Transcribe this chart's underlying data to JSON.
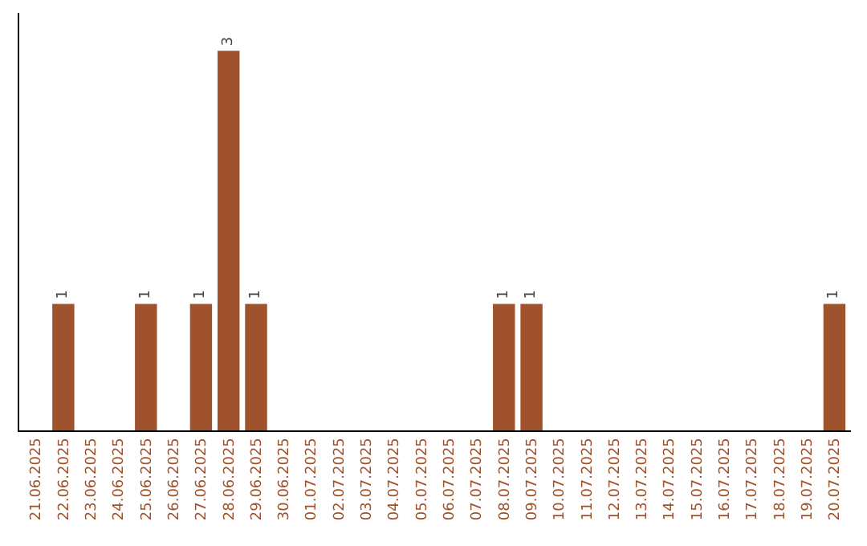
{
  "chart_data": {
    "type": "bar",
    "categories": [
      "21.06.2025",
      "22.06.2025",
      "23.06.2025",
      "24.06.2025",
      "25.06.2025",
      "26.06.2025",
      "27.06.2025",
      "28.06.2025",
      "29.06.2025",
      "30.06.2025",
      "01.07.2025",
      "02.07.2025",
      "03.07.2025",
      "04.07.2025",
      "05.07.2025",
      "06.07.2025",
      "07.07.2025",
      "08.07.2025",
      "09.07.2025",
      "10.07.2025",
      "11.07.2025",
      "12.07.2025",
      "13.07.2025",
      "14.07.2025",
      "15.07.2025",
      "16.07.2025",
      "17.07.2025",
      "18.07.2025",
      "19.07.2025",
      "20.07.2025"
    ],
    "values": [
      0,
      1,
      0,
      0,
      1,
      0,
      1,
      3,
      1,
      0,
      0,
      0,
      0,
      0,
      0,
      0,
      0,
      1,
      1,
      0,
      0,
      0,
      0,
      0,
      0,
      0,
      0,
      0,
      0,
      1
    ],
    "value_labels": [
      null,
      "1",
      null,
      null,
      "1",
      null,
      "1",
      "3",
      "1",
      null,
      null,
      null,
      null,
      null,
      null,
      null,
      null,
      "1",
      "1",
      null,
      null,
      null,
      null,
      null,
      null,
      null,
      null,
      null,
      null,
      "1"
    ],
    "color": "#a0522d",
    "tick_labels": "x"
  }
}
